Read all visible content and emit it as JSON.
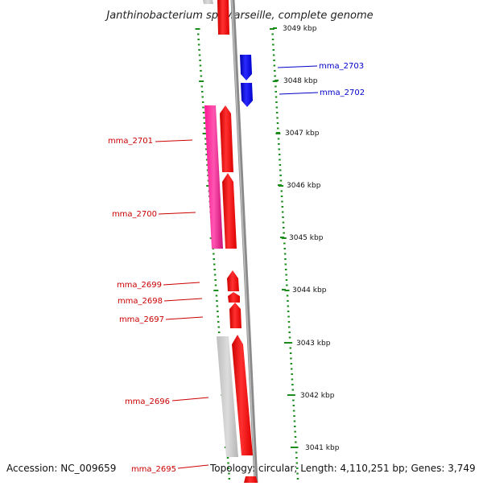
{
  "title": "Janthinobacterium sp. Marseille, complete genome",
  "accession": "Accession: NC_009659",
  "summary": "Topology: circular; Length: 4,110,251 bp; Genes: 3,749",
  "colors": {
    "forward": "#ff0000",
    "reverse": "#0000dd",
    "magenta": "#ff1493",
    "grey": "#c8c8c8",
    "backbone": "#888888",
    "ticks": "#1a8c1a"
  },
  "scale_labels": [
    "3049 kbp",
    "3048 kbp",
    "3047 kbp",
    "3046 kbp",
    "3045 kbp",
    "3044 kbp",
    "3043 kbp",
    "3042 kbp",
    "3041 kbp"
  ],
  "genes": [
    {
      "name": "mma_2703",
      "strand": "reverse",
      "color": "blue"
    },
    {
      "name": "mma_2702",
      "strand": "reverse",
      "color": "blue"
    },
    {
      "name": "mma_2701",
      "strand": "forward",
      "color": "red"
    },
    {
      "name": "mma_2700",
      "strand": "forward",
      "color": "red"
    },
    {
      "name": "mma_2699",
      "strand": "forward",
      "color": "red"
    },
    {
      "name": "mma_2698",
      "strand": "forward",
      "color": "red"
    },
    {
      "name": "mma_2697",
      "strand": "forward",
      "color": "red"
    },
    {
      "name": "mma_2696",
      "strand": "forward",
      "color": "red"
    },
    {
      "name": "mma_2695",
      "strand": "forward",
      "color": "red"
    }
  ]
}
